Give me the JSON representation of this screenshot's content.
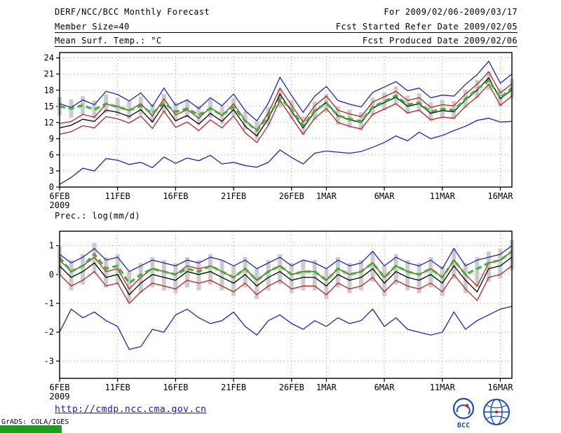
{
  "header": {
    "title": "DERF/NCC/BCC Monthly Forecast",
    "member_size": "Member Size=40",
    "temp_label": "Mean Surf. Temp.: °C",
    "for_range": "For 2009/02/06-2009/03/17",
    "fcst_started": "Fcst Started Refer Date 2009/02/05",
    "fcst_produced": "Fcst Produced Date 2009/02/06"
  },
  "prec_label": "Prec.: log(mm/d)",
  "footer": {
    "link": "http://cmdp.ncc.cma.gov.cn",
    "grads_credit": "GrADS: COLA/IGES",
    "logo_bcc_label": "BCC"
  },
  "colors": {
    "link": "#1414cc",
    "strip": "#18a018",
    "logo_blue": "#1a4dbf",
    "logo_red": "#cc2222",
    "blue_line": "#2222bb",
    "red_line": "#bb2222",
    "black_line": "#000000",
    "green_dashed": "#3cb43c",
    "spread_bar": "#cbcbcb"
  },
  "chart_data": [
    {
      "id": "temp",
      "type": "line",
      "title": "Mean Surf. Temp.: °C",
      "x_range": "6FEB2009 - 17MAR2009 (daily)",
      "n": 40,
      "ylim": [
        0,
        25
      ],
      "yticks": [
        0,
        3,
        6,
        9,
        12,
        15,
        18,
        21,
        24
      ],
      "xticks": [
        {
          "label": "6FEB",
          "sublabel": "2009",
          "day": 0
        },
        {
          "label": "11FEB",
          "day": 5
        },
        {
          "label": "16FEB",
          "day": 10
        },
        {
          "label": "21FEB",
          "day": 15
        },
        {
          "label": "26FEB",
          "day": 20
        },
        {
          "label": "1MAR",
          "day": 23
        },
        {
          "label": "6MAR",
          "day": 28
        },
        {
          "label": "11MAR",
          "day": 33
        },
        {
          "label": "16MAR",
          "day": 38
        }
      ],
      "series": [
        {
          "name": "blue-upper",
          "color": "#2222bb",
          "style": "solid",
          "values": [
            15.5,
            14.8,
            16.2,
            15.3,
            17.8,
            17.2,
            16.0,
            17.5,
            15.0,
            18.4,
            15.2,
            16.2,
            14.6,
            16.6,
            15.1,
            17.3,
            14.2,
            12.3,
            15.6,
            20.4,
            17.0,
            13.9,
            16.9,
            18.7,
            16.1,
            15.4,
            14.9,
            17.6,
            18.6,
            19.6,
            17.9,
            18.4,
            16.6,
            17.1,
            16.9,
            19.1,
            20.9,
            23.4,
            19.3,
            21.0
          ]
        },
        {
          "name": "red-upper",
          "color": "#bb2222",
          "style": "solid",
          "values": [
            11.8,
            12.2,
            13.5,
            13.0,
            15.4,
            15.0,
            14.2,
            15.5,
            13.2,
            16.4,
            13.4,
            14.4,
            12.8,
            14.8,
            13.3,
            15.5,
            12.4,
            10.6,
            13.8,
            18.4,
            15.2,
            12.1,
            15.1,
            16.9,
            14.3,
            13.6,
            13.1,
            15.8,
            16.8,
            17.8,
            16.1,
            16.6,
            14.8,
            15.3,
            15.1,
            17.3,
            19.1,
            21.4,
            17.5,
            19.2
          ]
        },
        {
          "name": "black-mid",
          "color": "#000000",
          "style": "solid",
          "values": [
            11.0,
            11.5,
            12.6,
            12.2,
            14.3,
            13.9,
            13.1,
            14.4,
            12.1,
            15.3,
            12.3,
            13.3,
            11.7,
            13.7,
            12.2,
            14.4,
            11.3,
            9.5,
            12.7,
            17.3,
            14.1,
            11.0,
            14.0,
            15.8,
            13.2,
            12.5,
            12.0,
            14.7,
            15.7,
            16.7,
            15.0,
            15.5,
            13.7,
            14.2,
            14.0,
            16.2,
            18.0,
            20.3,
            16.4,
            18.1
          ]
        },
        {
          "name": "red-lower",
          "color": "#bb2222",
          "style": "solid",
          "values": [
            9.8,
            10.3,
            11.4,
            11.0,
            13.1,
            12.7,
            11.9,
            13.2,
            10.9,
            14.1,
            11.1,
            12.1,
            10.5,
            12.5,
            11.0,
            13.2,
            10.1,
            8.3,
            11.5,
            16.1,
            12.9,
            9.8,
            12.8,
            14.6,
            12.0,
            11.3,
            10.8,
            13.5,
            14.5,
            15.5,
            13.8,
            14.3,
            12.5,
            13.0,
            12.8,
            15.0,
            16.8,
            19.1,
            15.2,
            16.9
          ]
        },
        {
          "name": "blue-lower",
          "color": "#2222bb",
          "style": "solid",
          "values": [
            0.5,
            1.8,
            3.5,
            3.0,
            5.3,
            5.0,
            4.2,
            4.6,
            3.6,
            5.6,
            4.4,
            5.4,
            4.9,
            5.9,
            4.3,
            4.6,
            4.0,
            3.7,
            4.6,
            6.9,
            5.5,
            4.3,
            6.3,
            6.7,
            6.5,
            6.3,
            6.6,
            7.4,
            8.3,
            9.5,
            8.6,
            10.2,
            9.0,
            9.6,
            10.5,
            11.3,
            12.4,
            12.8,
            12.1,
            12.2
          ]
        },
        {
          "name": "green-dashed",
          "color": "#3cb43c",
          "style": "dashed",
          "width": 3.2,
          "values": [
            15.0,
            14.6,
            15.2,
            14.4,
            15.5,
            14.9,
            14.3,
            15.1,
            13.7,
            15.6,
            14.0,
            14.6,
            13.4,
            14.6,
            13.4,
            14.9,
            12.3,
            10.5,
            13.2,
            16.5,
            14.4,
            11.4,
            14.2,
            15.6,
            13.3,
            12.7,
            12.2,
            14.9,
            15.9,
            17.0,
            15.3,
            15.7,
            14.0,
            14.5,
            14.3,
            16.4,
            18.2,
            19.8,
            16.6,
            18.4
          ]
        }
      ],
      "bars": {
        "color": "#cbcbcb",
        "low": [
          13.3,
          12.9,
          13.5,
          12.7,
          13.8,
          13.2,
          12.6,
          13.4,
          12.0,
          13.9,
          12.3,
          12.9,
          11.7,
          12.9,
          11.7,
          13.2,
          10.6,
          8.8,
          11.5,
          14.8,
          12.7,
          9.7,
          12.5,
          13.9,
          11.6,
          11.0,
          10.5,
          13.2,
          14.2,
          15.3,
          13.6,
          14.0,
          12.3,
          12.8,
          12.6,
          14.7,
          16.5,
          18.1,
          14.9,
          16.7
        ],
        "high": [
          16.7,
          16.3,
          16.9,
          16.1,
          17.2,
          16.6,
          16.0,
          16.8,
          15.4,
          17.3,
          15.7,
          16.3,
          15.1,
          16.3,
          15.1,
          16.6,
          14.0,
          12.2,
          14.9,
          18.2,
          16.1,
          13.1,
          15.9,
          17.3,
          15.0,
          14.4,
          13.9,
          16.6,
          17.6,
          18.7,
          17.0,
          17.4,
          15.7,
          16.2,
          16.0,
          18.1,
          19.9,
          21.5,
          18.3,
          20.1
        ]
      }
    },
    {
      "id": "prec",
      "type": "line",
      "title": "Prec.: log(mm/d)",
      "x_range": "6FEB2009 - 17MAR2009 (daily)",
      "n": 40,
      "ylim": [
        -3.6,
        1.5
      ],
      "yticks": [
        1,
        0,
        -1,
        -2,
        -3
      ],
      "xticks": [
        {
          "label": "6FEB",
          "sublabel": "2009",
          "day": 0
        },
        {
          "label": "11FEB",
          "day": 5
        },
        {
          "label": "16FEB",
          "day": 10
        },
        {
          "label": "21FEB",
          "day": 15
        },
        {
          "label": "26FEB",
          "day": 20
        },
        {
          "label": "1MAR",
          "day": 23
        },
        {
          "label": "6MAR",
          "day": 28
        },
        {
          "label": "11MAR",
          "day": 33
        },
        {
          "label": "16MAR",
          "day": 38
        }
      ],
      "series": [
        {
          "name": "blue-upper",
          "color": "#2222bb",
          "style": "solid",
          "values": [
            0.7,
            0.4,
            0.6,
            0.9,
            0.5,
            0.6,
            0.1,
            0.3,
            0.5,
            0.4,
            0.3,
            0.5,
            0.4,
            0.6,
            0.5,
            0.3,
            0.5,
            0.2,
            0.4,
            0.6,
            0.3,
            0.5,
            0.4,
            0.2,
            0.5,
            0.3,
            0.4,
            0.8,
            0.3,
            0.6,
            0.4,
            0.3,
            0.5,
            0.2,
            0.9,
            0.3,
            0.5,
            0.6,
            0.7,
            1.0
          ]
        },
        {
          "name": "red-upper",
          "color": "#bb2222",
          "style": "solid",
          "values": [
            0.5,
            0.1,
            0.3,
            0.6,
            0.1,
            0.2,
            -0.5,
            -0.1,
            0.2,
            0.1,
            0.0,
            0.3,
            0.2,
            0.3,
            0.1,
            -0.1,
            0.2,
            -0.2,
            0.1,
            0.3,
            0.0,
            0.1,
            0.1,
            -0.2,
            0.2,
            0.0,
            0.1,
            0.4,
            -0.1,
            0.3,
            0.1,
            0.0,
            0.2,
            -0.1,
            0.5,
            0.0,
            -0.4,
            0.4,
            0.5,
            0.8
          ]
        },
        {
          "name": "black-mid",
          "color": "#000000",
          "style": "solid",
          "values": [
            0.3,
            -0.1,
            0.1,
            0.4,
            -0.1,
            0.0,
            -0.7,
            -0.3,
            0.0,
            -0.1,
            -0.2,
            0.1,
            0.0,
            0.1,
            -0.1,
            -0.3,
            0.0,
            -0.4,
            -0.1,
            0.1,
            -0.2,
            -0.1,
            -0.1,
            -0.4,
            0.0,
            -0.2,
            -0.1,
            0.2,
            -0.3,
            0.1,
            -0.1,
            -0.2,
            0.0,
            -0.3,
            0.3,
            -0.2,
            -0.6,
            0.2,
            0.3,
            0.6
          ]
        },
        {
          "name": "red-lower",
          "color": "#bb2222",
          "style": "solid",
          "values": [
            0.0,
            -0.4,
            -0.2,
            0.1,
            -0.4,
            -0.3,
            -1.0,
            -0.6,
            -0.3,
            -0.4,
            -0.5,
            -0.2,
            -0.3,
            -0.2,
            -0.4,
            -0.6,
            -0.3,
            -0.7,
            -0.4,
            -0.2,
            -0.5,
            -0.4,
            -0.4,
            -0.7,
            -0.3,
            -0.5,
            -0.4,
            -0.1,
            -0.6,
            -0.2,
            -0.4,
            -0.5,
            -0.3,
            -0.6,
            0.0,
            -0.5,
            -0.9,
            -0.1,
            0.0,
            0.3
          ]
        },
        {
          "name": "blue-lower",
          "color": "#2222bb",
          "style": "solid",
          "values": [
            -2.0,
            -1.2,
            -1.5,
            -1.3,
            -1.6,
            -1.8,
            -2.6,
            -2.5,
            -1.9,
            -2.0,
            -1.4,
            -1.2,
            -1.5,
            -1.7,
            -1.6,
            -1.3,
            -1.8,
            -2.1,
            -1.6,
            -1.4,
            -1.7,
            -1.9,
            -1.6,
            -1.8,
            -1.5,
            -1.7,
            -1.6,
            -1.2,
            -1.8,
            -1.5,
            -1.9,
            -2.0,
            -2.1,
            -2.0,
            -1.3,
            -1.9,
            -1.6,
            -1.4,
            -1.2,
            -1.1
          ]
        },
        {
          "name": "green-dashed",
          "color": "#3cb43c",
          "style": "dashed",
          "width": 3.2,
          "values": [
            0.6,
            0.1,
            0.3,
            0.7,
            0.2,
            0.3,
            -0.3,
            0.0,
            0.2,
            0.1,
            0.0,
            0.2,
            0.1,
            0.3,
            0.1,
            -0.1,
            0.2,
            -0.2,
            0.1,
            0.3,
            0.0,
            0.1,
            0.1,
            -0.2,
            0.2,
            0.0,
            0.1,
            0.4,
            -0.1,
            0.3,
            0.1,
            0.0,
            0.2,
            -0.1,
            0.5,
            0.0,
            0.2,
            0.4,
            0.5,
            0.8
          ]
        }
      ],
      "bars": {
        "color": "#cbcbcb",
        "low": [
          -0.05,
          -0.55,
          -0.35,
          0.05,
          -0.45,
          -0.35,
          -0.95,
          -0.65,
          -0.45,
          -0.55,
          -0.65,
          -0.45,
          -0.55,
          -0.35,
          -0.55,
          -0.75,
          -0.45,
          -0.85,
          -0.55,
          -0.35,
          -0.65,
          -0.55,
          -0.55,
          -0.85,
          -0.45,
          -0.65,
          -0.55,
          -0.25,
          -0.75,
          -0.35,
          -0.55,
          -0.65,
          -0.45,
          -0.75,
          -0.15,
          -0.65,
          -0.45,
          -0.25,
          -0.15,
          0.15
        ],
        "high": [
          1.0,
          0.5,
          0.7,
          1.1,
          0.6,
          0.7,
          0.1,
          0.4,
          0.6,
          0.5,
          0.4,
          0.6,
          0.5,
          0.7,
          0.5,
          0.3,
          0.6,
          0.2,
          0.5,
          0.7,
          0.4,
          0.5,
          0.5,
          0.2,
          0.6,
          0.4,
          0.5,
          0.8,
          0.3,
          0.7,
          0.5,
          0.4,
          0.6,
          0.3,
          0.9,
          0.4,
          0.6,
          0.8,
          0.9,
          1.2
        ]
      }
    }
  ]
}
